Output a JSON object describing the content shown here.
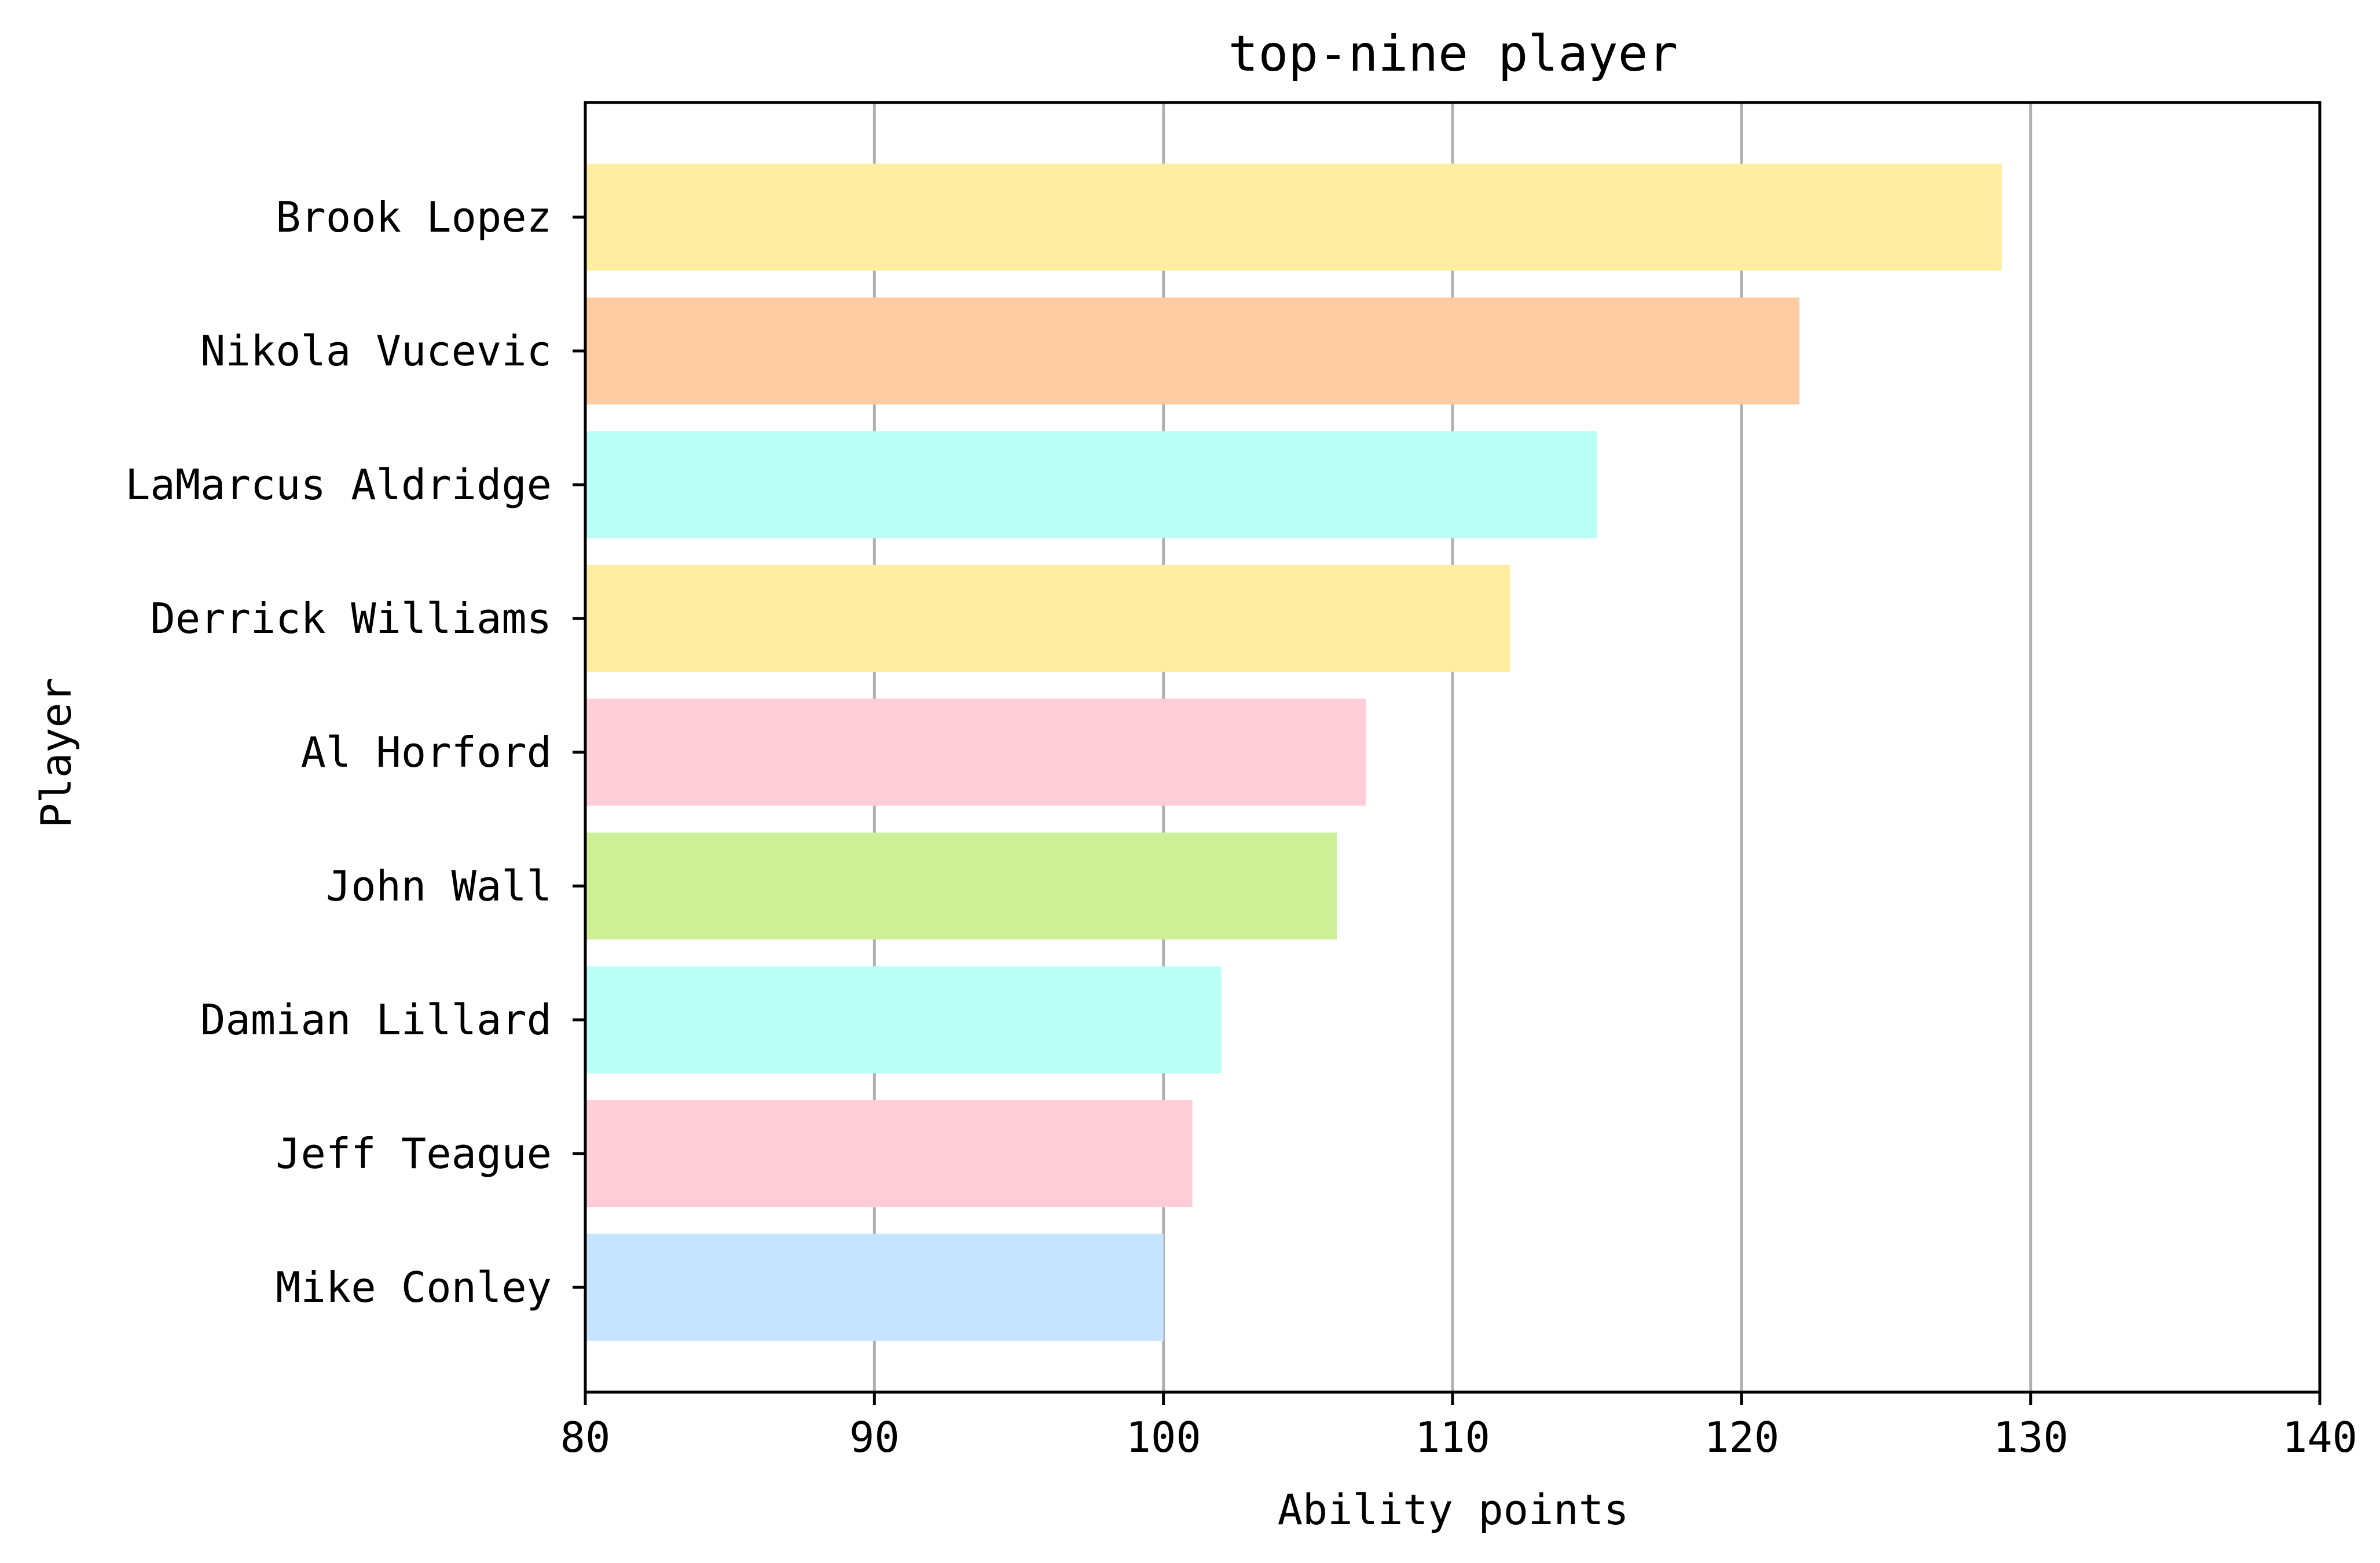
{
  "chart_data": {
    "type": "bar",
    "orientation": "horizontal",
    "title": "top-nine player",
    "xlabel": "Ability points",
    "ylabel": "Player",
    "xlim": [
      80,
      140
    ],
    "x_ticks": [
      "80",
      "90",
      "100",
      "110",
      "120",
      "130",
      "140"
    ],
    "grid": "vertical-only",
    "categories": [
      "Brook Lopez",
      "Nikola Vucevic",
      "LaMarcus Aldridge",
      "Derrick Williams",
      "Al Horford",
      "John Wall",
      "Damian Lillard",
      "Jeff Teague",
      "Mike Conley"
    ],
    "values": [
      129,
      122,
      115,
      112,
      107,
      106,
      102,
      101,
      100
    ],
    "colors": [
      "#ffeea1",
      "#ffcba1",
      "#b9fff5",
      "#ffeea1",
      "#ffcdd8",
      "#cdf097",
      "#b9fff5",
      "#ffcdd8",
      "#c6e3ff"
    ]
  }
}
